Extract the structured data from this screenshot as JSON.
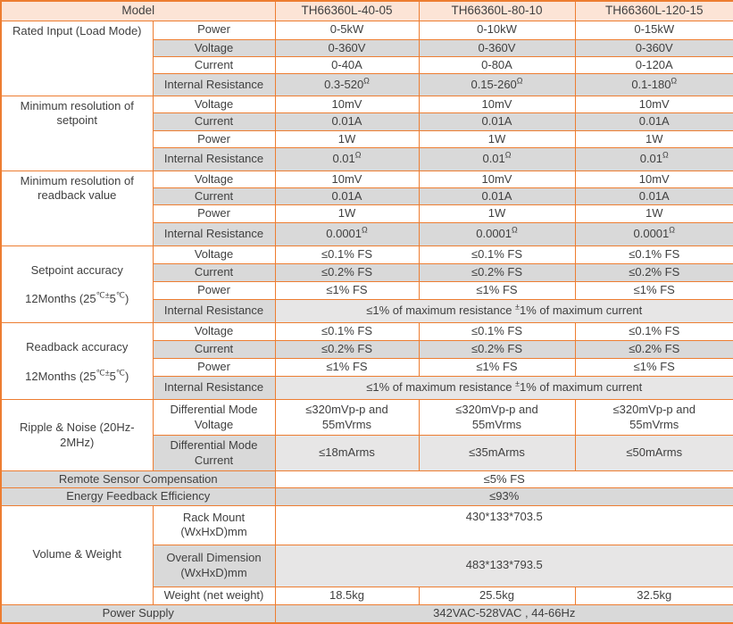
{
  "header": {
    "model_label": "Model",
    "models": [
      "TH66360L-40-05",
      "TH66360L-80-10",
      "TH66360L-120-15"
    ]
  },
  "rated": {
    "title": "Rated Input (Load Mode)",
    "power": {
      "label": "Power",
      "v": [
        "0-5kW",
        "0-10kW",
        "0-15kW"
      ]
    },
    "voltage": {
      "label": "Voltage",
      "v": [
        "0-360V",
        "0-360V",
        "0-360V"
      ]
    },
    "current": {
      "label": "Current",
      "v": [
        "0-40A",
        "0-80A",
        "0-120A"
      ]
    },
    "resistance": {
      "label": "Internal Resistance",
      "sup": "Ω",
      "base": [
        "0.3-520",
        "0.15-260",
        "0.1-180"
      ]
    }
  },
  "res_setpoint": {
    "title": "Minimum resolution of setpoint",
    "voltage": {
      "label": "Voltage",
      "v": [
        "10mV",
        "10mV",
        "10mV"
      ]
    },
    "current": {
      "label": "Current",
      "v": [
        "0.01A",
        "0.01A",
        "0.01A"
      ]
    },
    "power": {
      "label": "Power",
      "v": [
        "1W",
        "1W",
        "1W"
      ]
    },
    "resistance": {
      "label": "Internal Resistance",
      "sup": "Ω",
      "base": [
        "0.01",
        "0.01",
        "0.01"
      ]
    }
  },
  "res_readback": {
    "title": "Minimum resolution of readback value",
    "voltage": {
      "label": "Voltage",
      "v": [
        "10mV",
        "10mV",
        "10mV"
      ]
    },
    "current": {
      "label": "Current",
      "v": [
        "0.01A",
        "0.01A",
        "0.01A"
      ]
    },
    "power": {
      "label": "Power",
      "v": [
        "1W",
        "1W",
        "1W"
      ]
    },
    "resistance": {
      "label": "Internal Resistance",
      "sup": "Ω",
      "base": [
        "0.0001",
        "0.0001",
        "0.0001"
      ]
    }
  },
  "acc_setpoint": {
    "title_line1": "Setpoint accuracy",
    "title_line2": [
      {
        "t": "12Months (25"
      },
      {
        "t": "℃±",
        "s": true
      },
      {
        "t": "5"
      },
      {
        "t": "℃",
        "s": true
      },
      {
        "t": ")"
      }
    ],
    "voltage": {
      "label": "Voltage",
      "v": [
        "≤0.1% FS",
        "≤0.1% FS",
        "≤0.1% FS"
      ]
    },
    "current": {
      "label": "Current",
      "v": [
        "≤0.2% FS",
        "≤0.2% FS",
        "≤0.2% FS"
      ]
    },
    "power": {
      "label": "Power",
      "v": [
        "≤1% FS",
        "≤1% FS",
        "≤1% FS"
      ]
    },
    "resistance": {
      "label": "Internal Resistance",
      "value": [
        {
          "t": "≤1% of maximum resistance "
        },
        {
          "t": "±",
          "s": true
        },
        {
          "t": "1% of maximum current"
        }
      ]
    }
  },
  "acc_readback": {
    "title_line1": "Readback accuracy",
    "title_line2": [
      {
        "t": "12Months (25"
      },
      {
        "t": "℃±",
        "s": true
      },
      {
        "t": "5"
      },
      {
        "t": "℃",
        "s": true
      },
      {
        "t": ")"
      }
    ],
    "voltage": {
      "label": "Voltage",
      "v": [
        "≤0.1% FS",
        "≤0.1% FS",
        "≤0.1% FS"
      ]
    },
    "current": {
      "label": "Current",
      "v": [
        "≤0.2% FS",
        "≤0.2% FS",
        "≤0.2% FS"
      ]
    },
    "power": {
      "label": "Power",
      "v": [
        "≤1% FS",
        "≤1% FS",
        "≤1% FS"
      ]
    },
    "resistance": {
      "label": "Internal Resistance",
      "value": [
        {
          "t": "≤1% of maximum resistance "
        },
        {
          "t": "±",
          "s": true
        },
        {
          "t": "1% of maximum current"
        }
      ]
    }
  },
  "ripple": {
    "title": "Ripple & Noise (20Hz-2MHz)",
    "dm_voltage": {
      "label": "Differential Mode Voltage",
      "v": [
        "≤320mVp-p and\n55mVrms",
        "≤320mVp-p and\n55mVrms",
        "≤320mVp-p and\n55mVrms"
      ]
    },
    "dm_current": {
      "label": "Differential Mode Current",
      "v": [
        "≤18mArms",
        "≤35mArms",
        "≤50mArms"
      ]
    }
  },
  "remote_sensor": {
    "label": "Remote Sensor Compensation",
    "value": "≤5% FS"
  },
  "energy_feedback": {
    "label": "Energy Feedback Efficiency",
    "value": "≤93%"
  },
  "volume_weight": {
    "title": "Volume & Weight",
    "rack": {
      "label": "Rack Mount (WxHxD)mm",
      "value": "430*133*703.5"
    },
    "overall": {
      "label": "Overall Dimension (WxHxD)mm",
      "value": "483*133*793.5"
    },
    "weight": {
      "label": "Weight (net weight)",
      "v": [
        "18.5kg",
        "25.5kg",
        "32.5kg"
      ]
    }
  },
  "power_supply": {
    "label": "Power Supply",
    "value": "342VAC-528VAC , 44-66Hz"
  },
  "colors": {
    "border_orange": "#ed7d31",
    "header_bg": "#fce4d6",
    "stripe_gray": "#d9d9d9",
    "light_gray": "#e7e6e6",
    "text": "#3f3f3f"
  }
}
